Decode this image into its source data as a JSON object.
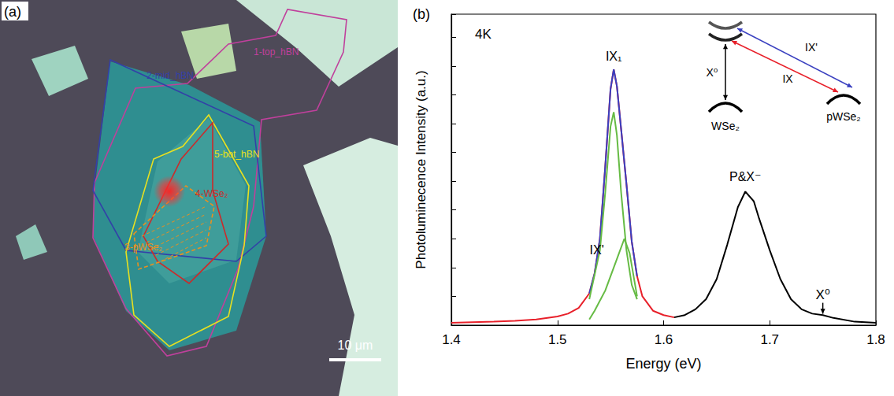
{
  "panel_a": {
    "panel_label": "(a)",
    "regions": [
      {
        "label": "1-top_hBN",
        "color": "#c0409c"
      },
      {
        "label": "2-mid_hBN",
        "color": "#3340a8"
      },
      {
        "label": "5-bot_hBN",
        "color": "#e8e020"
      },
      {
        "label": "4-WSe₂",
        "color": "#cc2a2a"
      },
      {
        "label": "3-pWSe₂",
        "color": "#e89020"
      }
    ],
    "scale_bar": "10 μm"
  },
  "chart_data": {
    "type": "line",
    "panel_label": "(b)",
    "x_label": "Energy (eV)",
    "y_label": "Photoluminecence Intensity (a.u.)",
    "xlim": [
      1.4,
      1.8
    ],
    "xticks": [
      1.4,
      1.5,
      1.6,
      1.7,
      1.8
    ],
    "ylim": [
      0,
      10.8
    ],
    "yticks": [
      0,
      1,
      2,
      3,
      4,
      5,
      6,
      7,
      8,
      9,
      10
    ],
    "tick_labels": "x",
    "grid": false,
    "series": [
      {
        "color": "#e8202a",
        "x": [
          1.4,
          1.42,
          1.44,
          1.46,
          1.48,
          1.5,
          1.51,
          1.52,
          1.53,
          1.535,
          1.54,
          1.545,
          1.55,
          1.553,
          1.556,
          1.56,
          1.565,
          1.57,
          1.575,
          1.58,
          1.59,
          1.6,
          1.61
        ],
        "values": [
          0.08,
          0.1,
          0.12,
          0.15,
          0.2,
          0.3,
          0.4,
          0.6,
          1.1,
          1.8,
          3.0,
          5.5,
          8.2,
          8.88,
          8.3,
          6.8,
          4.9,
          2.9,
          1.7,
          1.0,
          0.5,
          0.35,
          0.27
        ]
      },
      {
        "color": "#000000",
        "x": [
          1.61,
          1.62,
          1.63,
          1.64,
          1.65,
          1.66,
          1.67,
          1.677,
          1.685,
          1.69,
          1.7,
          1.71,
          1.72,
          1.73,
          1.74,
          1.75,
          1.76,
          1.78,
          1.8
        ],
        "values": [
          0.27,
          0.35,
          0.55,
          0.9,
          1.6,
          2.8,
          4.1,
          4.64,
          4.3,
          3.7,
          2.6,
          1.6,
          0.9,
          0.55,
          0.4,
          0.35,
          0.25,
          0.12,
          0.08
        ]
      },
      {
        "color": "#3a40c0",
        "x": [
          1.53,
          1.535,
          1.54,
          1.545,
          1.55,
          1.553,
          1.556,
          1.56,
          1.565,
          1.57,
          1.575
        ],
        "values": [
          1.1,
          1.8,
          3.0,
          5.5,
          8.2,
          8.88,
          8.3,
          6.8,
          4.9,
          2.9,
          1.7
        ]
      },
      {
        "color": "#66bb44",
        "x": [
          1.53,
          1.54,
          1.545,
          1.55,
          1.553,
          1.556,
          1.56,
          1.565,
          1.57,
          1.575
        ],
        "values": [
          0.9,
          2.6,
          4.6,
          6.9,
          7.4,
          6.6,
          4.6,
          2.6,
          1.4,
          0.9
        ]
      },
      {
        "color": "#66bb44",
        "x": [
          1.53,
          1.535,
          1.545,
          1.555,
          1.563,
          1.568,
          1.575
        ],
        "values": [
          0.2,
          0.5,
          1.2,
          2.2,
          3.0,
          2.5,
          1.0
        ]
      }
    ],
    "annotations": [
      {
        "text": "4K",
        "x": 1.43,
        "y": 10.1
      },
      {
        "text": "IX₁",
        "x": 1.553,
        "y": 9.35
      },
      {
        "text": "IX'",
        "x": 1.537,
        "y": 2.6
      },
      {
        "text": "P&X⁻",
        "x": 1.677,
        "y": 5.15
      },
      {
        "text": "X⁰",
        "x": 1.75,
        "y": 1.05,
        "marker": "arrow"
      }
    ],
    "inset": {
      "bands": [
        "WSe₂",
        "pWSe₂"
      ],
      "transitions": [
        {
          "label": "X⁰",
          "color": "#000000"
        },
        {
          "label": "IX",
          "color": "#e8202a"
        },
        {
          "label": "IX'",
          "color": "#3a40c0"
        }
      ]
    }
  }
}
